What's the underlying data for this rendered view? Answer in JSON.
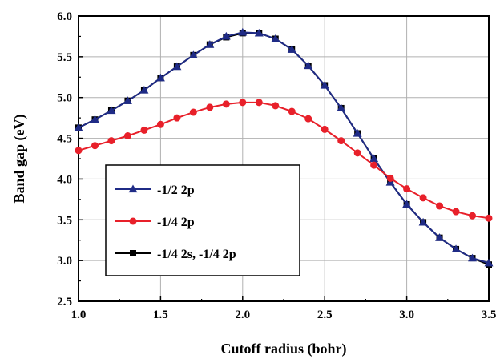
{
  "chart_data": {
    "type": "line",
    "title": "",
    "xlabel": "Cutoff radius (bohr)",
    "ylabel": "Band gap (eV)",
    "xlim": [
      1.0,
      3.5
    ],
    "ylim": [
      2.5,
      6.0
    ],
    "grid": true,
    "legend_position": "lower-left",
    "x_ticks": [
      "1.0",
      "1.5",
      "2.0",
      "2.5",
      "3.0",
      "3.5"
    ],
    "y_ticks": [
      "2.5",
      "3.0",
      "3.5",
      "4.0",
      "4.5",
      "5.0",
      "5.5",
      "6.0"
    ],
    "x": [
      1.0,
      1.1,
      1.2,
      1.3,
      1.4,
      1.5,
      1.6,
      1.7,
      1.8,
      1.9,
      2.0,
      2.1,
      2.2,
      2.3,
      2.4,
      2.5,
      2.6,
      2.7,
      2.8,
      2.9,
      3.0,
      3.1,
      3.2,
      3.3,
      3.4,
      3.5
    ],
    "series": [
      {
        "name": "-1/4 2s, -1/4 2p",
        "color": "#000000",
        "marker": "square",
        "values": [
          4.63,
          4.73,
          4.84,
          4.96,
          5.09,
          5.24,
          5.38,
          5.52,
          5.65,
          5.74,
          5.79,
          5.79,
          5.72,
          5.59,
          5.39,
          5.15,
          4.87,
          4.56,
          4.25,
          3.96,
          3.69,
          3.47,
          3.28,
          3.14,
          3.03,
          2.95
        ]
      },
      {
        "name": "-1/2 2p",
        "color": "#1f2b86",
        "marker": "triangle",
        "values": [
          4.63,
          4.73,
          4.84,
          4.96,
          5.09,
          5.24,
          5.38,
          5.52,
          5.65,
          5.75,
          5.8,
          5.79,
          5.72,
          5.59,
          5.39,
          5.15,
          4.87,
          4.56,
          4.25,
          3.96,
          3.69,
          3.47,
          3.28,
          3.14,
          3.03,
          2.97
        ]
      },
      {
        "name": "-1/4 2p",
        "color": "#e8202a",
        "marker": "circle",
        "values": [
          4.35,
          4.41,
          4.47,
          4.53,
          4.6,
          4.67,
          4.75,
          4.82,
          4.88,
          4.92,
          4.94,
          4.94,
          4.9,
          4.83,
          4.74,
          4.61,
          4.47,
          4.32,
          4.17,
          4.01,
          3.88,
          3.77,
          3.67,
          3.6,
          3.55,
          3.52
        ]
      }
    ],
    "legend": [
      {
        "name": "-1/2 2p",
        "color": "#1f2b86",
        "marker": "triangle"
      },
      {
        "name": "-1/4 2p",
        "color": "#e8202a",
        "marker": "circle"
      },
      {
        "name": "-1/4 2s, -1/4 2p",
        "color": "#000000",
        "marker": "square"
      }
    ]
  }
}
